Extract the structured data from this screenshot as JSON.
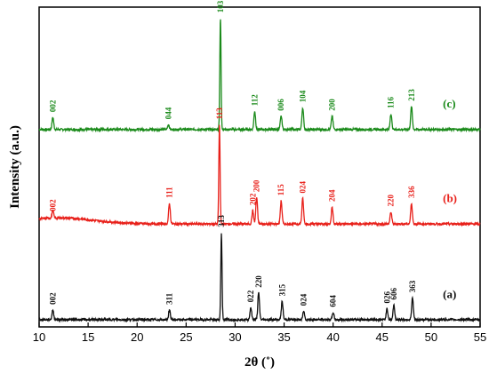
{
  "chart_data": {
    "type": "line",
    "xlabel": "2θ (˚)",
    "ylabel": "Intensity (a.u.)",
    "xlim": [
      10,
      55
    ],
    "x_ticks": [
      "10",
      "15",
      "20",
      "25",
      "30",
      "35",
      "40",
      "45",
      "50",
      "55"
    ],
    "y_ticks_shown": false,
    "grid": false,
    "series": [
      {
        "name": "(c)",
        "color": "#1a8a1a",
        "baseline": 8.15,
        "peaks": [
          {
            "x": 11.4,
            "h": 0.5,
            "label": "002"
          },
          {
            "x": 23.2,
            "h": 0.2,
            "label": "044"
          },
          {
            "x": 28.5,
            "h": 4.6,
            "label": "103"
          },
          {
            "x": 32.0,
            "h": 0.75,
            "label": "112"
          },
          {
            "x": 34.7,
            "h": 0.55,
            "label": "006"
          },
          {
            "x": 36.9,
            "h": 0.9,
            "label": "104"
          },
          {
            "x": 39.9,
            "h": 0.55,
            "label": "200"
          },
          {
            "x": 45.9,
            "h": 0.65,
            "label": "116"
          },
          {
            "x": 48.0,
            "h": 0.95,
            "label": "213"
          }
        ]
      },
      {
        "name": "(b)",
        "color": "#e8201a",
        "baseline": 4.25,
        "peaks": [
          {
            "x": 11.4,
            "h": 0.3,
            "label": "002"
          },
          {
            "x": 23.3,
            "h": 0.85,
            "label": "111"
          },
          {
            "x": 28.4,
            "h": 4.1,
            "label": "113"
          },
          {
            "x": 31.8,
            "h": 0.55,
            "label": "202"
          },
          {
            "x": 32.2,
            "h": 1.1,
            "label": "200"
          },
          {
            "x": 34.7,
            "h": 0.95,
            "label": "115"
          },
          {
            "x": 36.9,
            "h": 1.05,
            "label": "024"
          },
          {
            "x": 39.9,
            "h": 0.7,
            "label": "204"
          },
          {
            "x": 45.9,
            "h": 0.5,
            "label": "220"
          },
          {
            "x": 48.0,
            "h": 0.85,
            "label": "336"
          }
        ]
      },
      {
        "name": "(a)",
        "color": "#111111",
        "baseline": 0.3,
        "peaks": [
          {
            "x": 11.4,
            "h": 0.4,
            "label": "002"
          },
          {
            "x": 23.3,
            "h": 0.4,
            "label": "311"
          },
          {
            "x": 28.6,
            "h": 3.6,
            "label": "313"
          },
          {
            "x": 31.6,
            "h": 0.5,
            "label": "022"
          },
          {
            "x": 32.4,
            "h": 1.1,
            "label": "220"
          },
          {
            "x": 34.8,
            "h": 0.75,
            "label": "315"
          },
          {
            "x": 37.0,
            "h": 0.35,
            "label": "024"
          },
          {
            "x": 40.0,
            "h": 0.3,
            "label": "604"
          },
          {
            "x": 45.5,
            "h": 0.45,
            "label": "026"
          },
          {
            "x": 46.2,
            "h": 0.6,
            "label": "606"
          },
          {
            "x": 48.1,
            "h": 0.9,
            "label": "363"
          }
        ]
      }
    ]
  }
}
